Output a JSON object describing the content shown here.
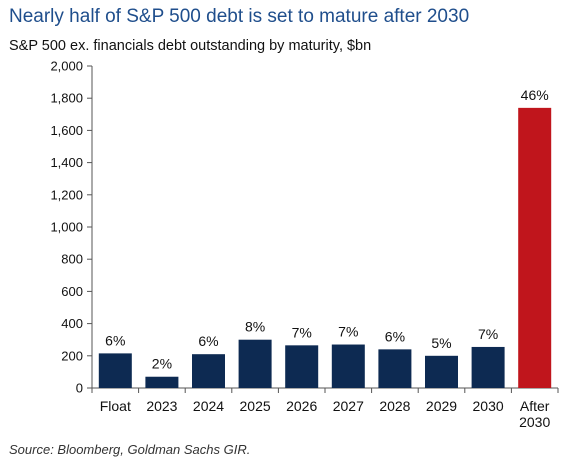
{
  "chart_data": {
    "type": "bar",
    "title": "Nearly half of S&P 500 debt is set to mature after 2030",
    "subtitle": "S&P 500 ex. financials debt outstanding by maturity, $bn",
    "categories": [
      "Float",
      "2023",
      "2024",
      "2025",
      "2026",
      "2027",
      "2028",
      "2029",
      "2030",
      "After 2030"
    ],
    "values": [
      215,
      70,
      210,
      300,
      265,
      270,
      240,
      200,
      255,
      1740
    ],
    "data_labels": [
      "6%",
      "2%",
      "6%",
      "8%",
      "7%",
      "7%",
      "6%",
      "5%",
      "7%",
      "46%"
    ],
    "colors": [
      "#0d2a52",
      "#0d2a52",
      "#0d2a52",
      "#0d2a52",
      "#0d2a52",
      "#0d2a52",
      "#0d2a52",
      "#0d2a52",
      "#0d2a52",
      "#c0151c"
    ],
    "ylim": [
      0,
      2000
    ],
    "yticks": [
      0,
      200,
      400,
      600,
      800,
      1000,
      1200,
      1400,
      1600,
      1800,
      2000
    ],
    "ytick_labels": [
      "0",
      "200",
      "400",
      "600",
      "800",
      "1,000",
      "1,200",
      "1,400",
      "1,600",
      "1,800",
      "2,000"
    ],
    "xlabel": "",
    "ylabel": "",
    "grid": false,
    "source": "Source: Bloomberg, Goldman Sachs GIR."
  }
}
